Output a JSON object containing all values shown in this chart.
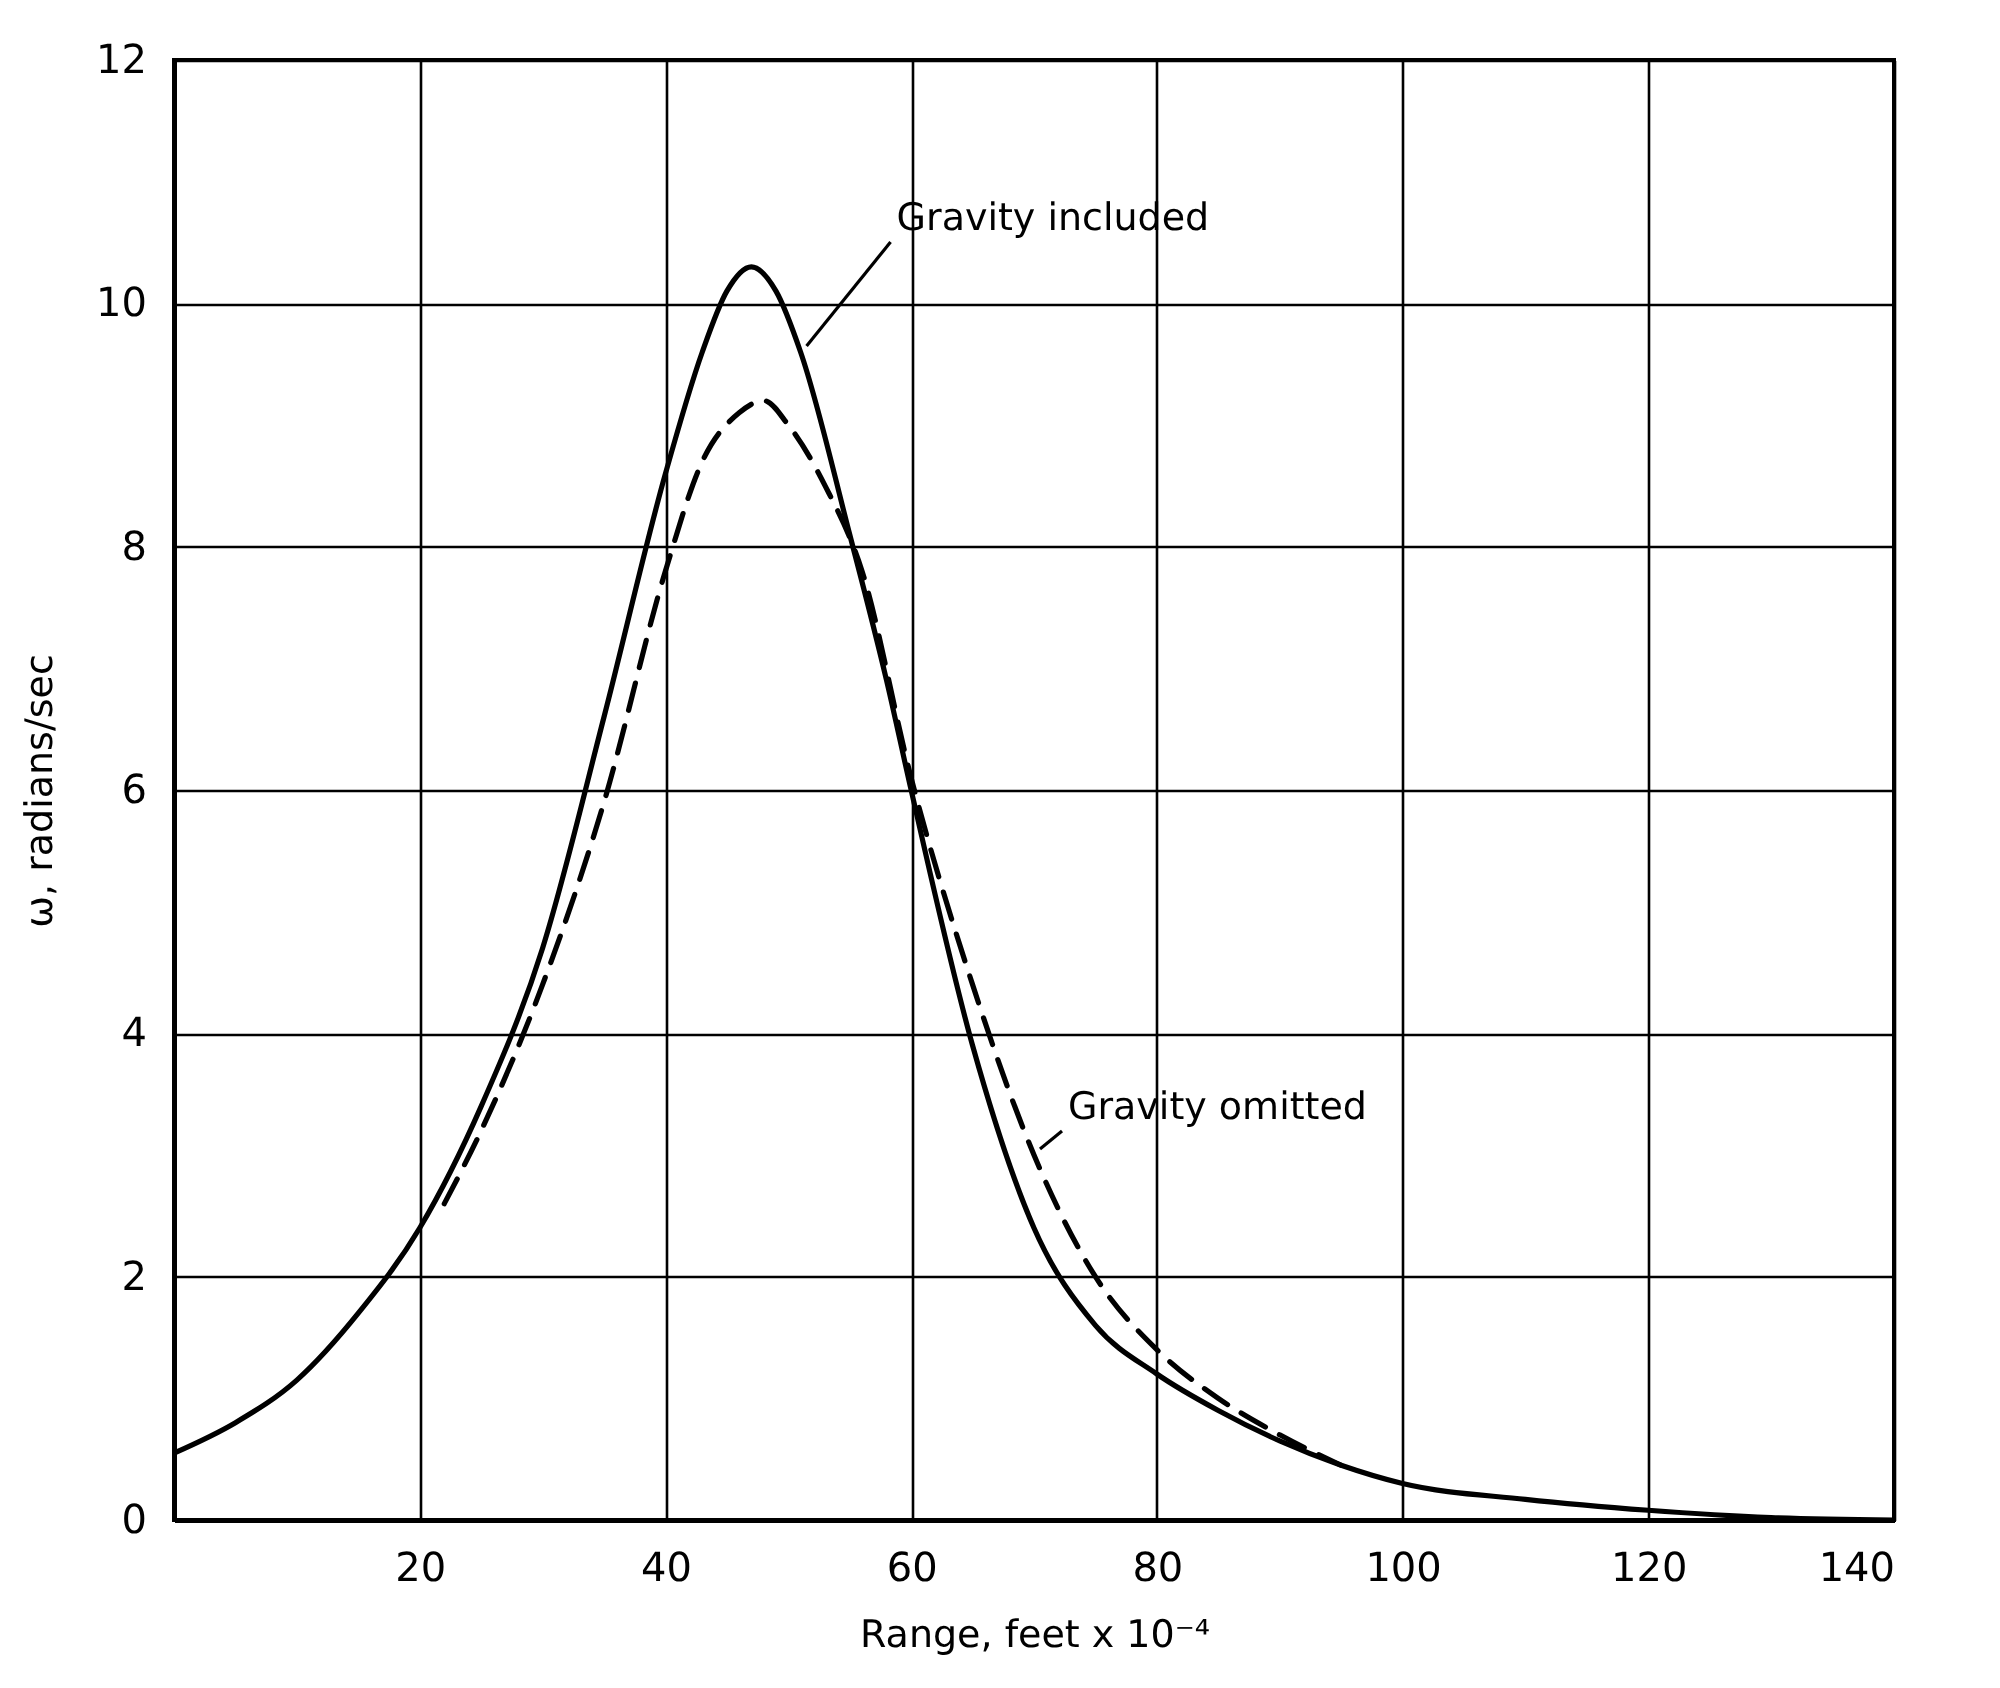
{
  "chart_data": {
    "type": "line",
    "xlabel": "Range, feet x 10⁻⁴",
    "ylabel": "ω, radians/sec",
    "xlim": [
      0,
      140
    ],
    "ylim": [
      0,
      12
    ],
    "xticks": [
      {
        "value": 0,
        "label": null
      },
      20,
      40,
      60,
      80,
      100,
      120,
      140
    ],
    "yticks": [
      0,
      2,
      4,
      6,
      8,
      10,
      12
    ],
    "grid": true,
    "series": [
      {
        "name": "Gravity included",
        "color": "#000000",
        "line_style": "solid",
        "x": [
          0,
          5,
          10,
          15,
          20,
          25,
          30,
          35,
          40,
          43,
          45,
          47,
          49,
          51,
          55,
          58,
          60,
          65,
          70,
          75,
          80,
          85,
          90,
          95,
          100,
          110,
          120,
          130,
          140
        ],
        "values": [
          0.55,
          0.8,
          1.15,
          1.7,
          2.4,
          3.4,
          4.7,
          6.6,
          8.6,
          9.6,
          10.1,
          10.3,
          10.1,
          9.6,
          8.1,
          6.9,
          6.0,
          3.9,
          2.4,
          1.6,
          1.2,
          0.9,
          0.65,
          0.45,
          0.3,
          0.17,
          0.08,
          0.02,
          0
        ]
      },
      {
        "name": "Gravity omitted",
        "color": "#000000",
        "line_style": "dashed",
        "x": [
          22,
          25,
          30,
          35,
          40,
          43,
          46,
          48,
          50,
          53,
          56,
          60,
          65,
          70,
          75,
          80,
          85,
          90,
          95
        ],
        "values": [
          2.6,
          3.2,
          4.4,
          5.9,
          7.8,
          8.7,
          9.1,
          9.2,
          9.0,
          8.5,
          7.8,
          6.1,
          4.4,
          3.0,
          2.0,
          1.4,
          1.0,
          0.7,
          0.45
        ]
      }
    ]
  }
}
